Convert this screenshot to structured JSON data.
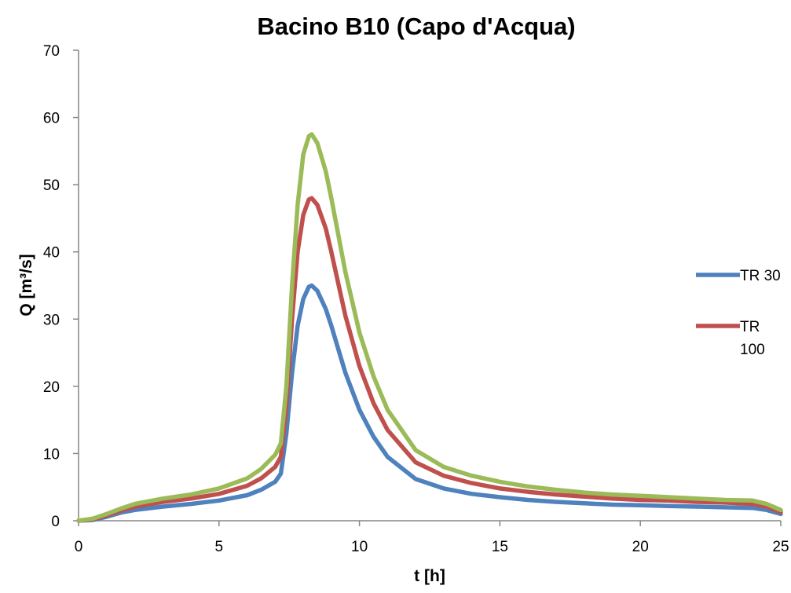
{
  "chart_data": {
    "type": "line",
    "title": "Bacino B10 (Capo d'Acqua)",
    "xlabel": "t [h]",
    "ylabel": "Q [m³/s]",
    "xlim": [
      0,
      25
    ],
    "ylim": [
      0,
      70
    ],
    "xticks": [
      0,
      5,
      10,
      15,
      20,
      25
    ],
    "yticks": [
      0,
      10,
      20,
      30,
      40,
      50,
      60,
      70
    ],
    "grid": false,
    "legend_position": "right",
    "series": [
      {
        "name": "TR 30",
        "color": "#4F81BD",
        "in_legend": true,
        "x": [
          0,
          0.5,
          1,
          1.5,
          2,
          3,
          4,
          5,
          6,
          6.5,
          7,
          7.2,
          7.4,
          7.6,
          7.8,
          8,
          8.2,
          8.3,
          8.5,
          8.8,
          9,
          9.5,
          10,
          10.5,
          11,
          12,
          13,
          14,
          15,
          16,
          17,
          18,
          19,
          20,
          21,
          22,
          23,
          24,
          24.5,
          25
        ],
        "y": [
          0,
          0.1,
          0.6,
          1.2,
          1.6,
          2.1,
          2.5,
          3.0,
          3.8,
          4.6,
          5.8,
          7.0,
          13,
          22,
          29,
          33,
          34.8,
          35,
          34.2,
          31.5,
          29,
          22,
          16.5,
          12.5,
          9.5,
          6.2,
          4.8,
          4.0,
          3.5,
          3.1,
          2.8,
          2.6,
          2.4,
          2.3,
          2.2,
          2.1,
          2.0,
          1.9,
          1.6,
          1.0
        ]
      },
      {
        "name": "TR 100",
        "color": "#C0504D",
        "in_legend": true,
        "x": [
          0,
          0.5,
          1,
          1.5,
          2,
          3,
          4,
          5,
          6,
          6.5,
          7,
          7.2,
          7.4,
          7.6,
          7.8,
          8,
          8.2,
          8.3,
          8.5,
          8.8,
          9,
          9.5,
          10,
          10.5,
          11,
          12,
          13,
          14,
          15,
          16,
          17,
          18,
          19,
          20,
          21,
          22,
          23,
          24,
          24.5,
          25
        ],
        "y": [
          0,
          0.2,
          0.8,
          1.5,
          2.1,
          2.8,
          3.3,
          4.0,
          5.2,
          6.3,
          8.0,
          9.5,
          17,
          30,
          40,
          45.5,
          47.8,
          48,
          47,
          43.5,
          40,
          30.5,
          23,
          17.5,
          13.5,
          8.7,
          6.7,
          5.6,
          4.8,
          4.3,
          3.9,
          3.6,
          3.3,
          3.1,
          3.0,
          2.8,
          2.7,
          2.5,
          2.1,
          1.3
        ]
      },
      {
        "name": "",
        "color": "#9BBB59",
        "in_legend": false,
        "x": [
          0,
          0.5,
          1,
          1.5,
          2,
          3,
          4,
          5,
          6,
          6.5,
          7,
          7.2,
          7.4,
          7.6,
          7.8,
          8,
          8.2,
          8.3,
          8.5,
          8.8,
          9,
          9.5,
          10,
          10.5,
          11,
          12,
          13,
          14,
          15,
          16,
          17,
          18,
          19,
          20,
          21,
          22,
          23,
          24,
          24.5,
          25
        ],
        "y": [
          0,
          0.3,
          1.0,
          1.8,
          2.5,
          3.3,
          3.9,
          4.8,
          6.3,
          7.7,
          9.8,
          11.5,
          20,
          35,
          47,
          54.5,
          57.2,
          57.5,
          56.2,
          52,
          48,
          37,
          28,
          21.5,
          16.5,
          10.5,
          8.0,
          6.7,
          5.8,
          5.1,
          4.6,
          4.2,
          3.9,
          3.7,
          3.5,
          3.3,
          3.1,
          3.0,
          2.5,
          1.6
        ]
      }
    ]
  }
}
